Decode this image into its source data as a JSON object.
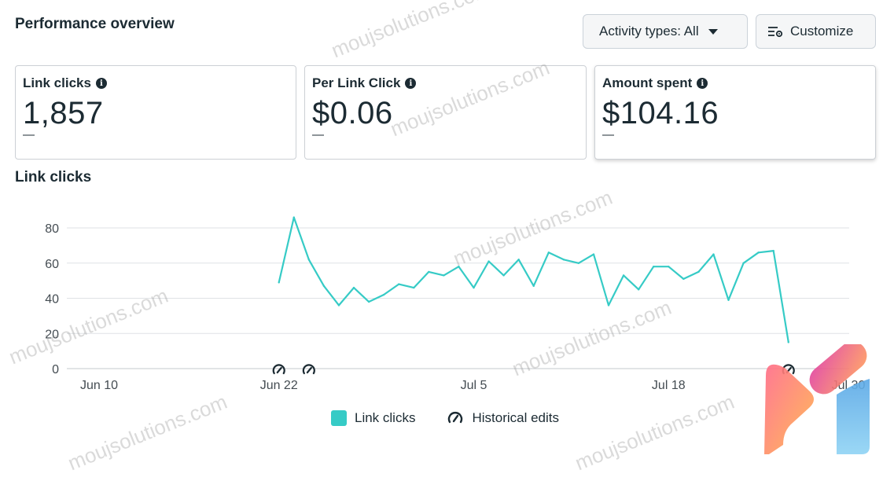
{
  "header": {
    "title": "Performance overview"
  },
  "toolbar": {
    "activity_label": "Activity types: All",
    "customize_label": "Customize"
  },
  "cards": [
    {
      "label": "Link clicks",
      "value": "1,857",
      "change": "—"
    },
    {
      "label": "Per Link Click",
      "value": "$0.06",
      "change": "—"
    },
    {
      "label": "Amount spent",
      "value": "$104.16",
      "change": "—"
    }
  ],
  "chart_title": "Link clicks",
  "legend": {
    "series_label": "Link clicks",
    "edits_label": "Historical edits"
  },
  "watermark": "moujsolutions.com",
  "colors": {
    "series": "#36cbc6",
    "text": "#1c2b33"
  },
  "chart_data": {
    "type": "line",
    "title": "Link clicks",
    "x_tick_labels": [
      "Jun 10",
      "Jun 22",
      "Jul 5",
      "Jul 18",
      "Jul 30"
    ],
    "x_tick_dates": [
      "2024-06-10",
      "2024-06-22",
      "2024-07-05",
      "2024-07-18",
      "2024-07-30"
    ],
    "ylim": [
      0,
      80
    ],
    "y_ticks": [
      0,
      20,
      40,
      60,
      80
    ],
    "grid": true,
    "legend_position": "bottom",
    "series": [
      {
        "name": "Link clicks",
        "color": "#36cbc6",
        "x": [
          "2024-06-22",
          "2024-06-23",
          "2024-06-24",
          "2024-06-25",
          "2024-06-26",
          "2024-06-27",
          "2024-06-28",
          "2024-06-29",
          "2024-06-30",
          "2024-07-01",
          "2024-07-02",
          "2024-07-03",
          "2024-07-04",
          "2024-07-05",
          "2024-07-06",
          "2024-07-07",
          "2024-07-08",
          "2024-07-09",
          "2024-07-10",
          "2024-07-11",
          "2024-07-12",
          "2024-07-13",
          "2024-07-14",
          "2024-07-15",
          "2024-07-16",
          "2024-07-17",
          "2024-07-18",
          "2024-07-19",
          "2024-07-20",
          "2024-07-21",
          "2024-07-22",
          "2024-07-23",
          "2024-07-24",
          "2024-07-25",
          "2024-07-26",
          "2024-07-27"
        ],
        "values": [
          49,
          86,
          62,
          47,
          36,
          46,
          38,
          42,
          48,
          46,
          55,
          53,
          58,
          46,
          61,
          53,
          62,
          47,
          66,
          62,
          60,
          65,
          36,
          53,
          45,
          58,
          58,
          51,
          55,
          65,
          39,
          60,
          66,
          67,
          15,
          null
        ]
      }
    ],
    "historical_edits": [
      "2024-06-22",
      "2024-06-24",
      "2024-07-26"
    ]
  }
}
